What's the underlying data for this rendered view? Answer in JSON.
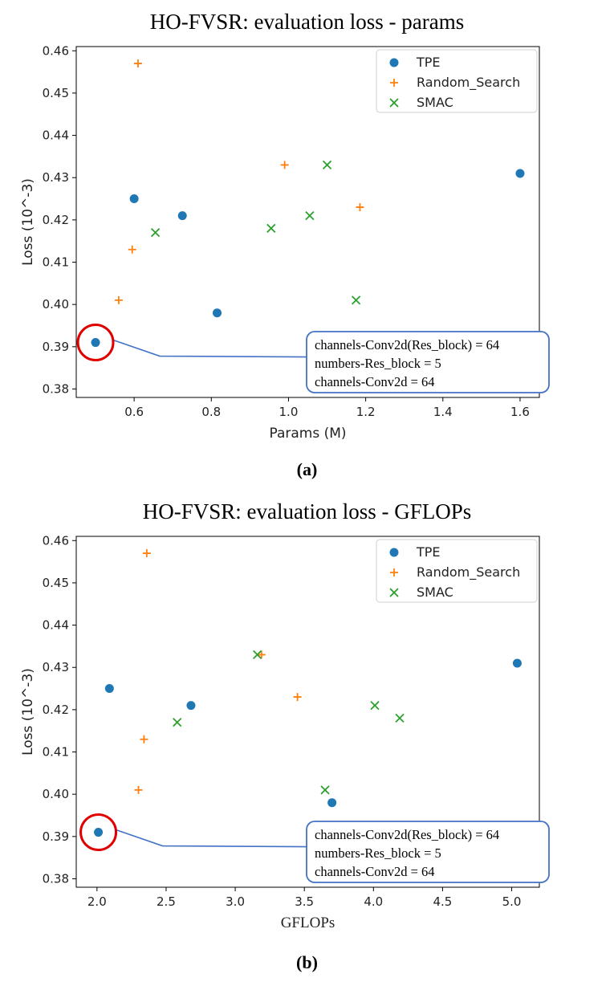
{
  "panels": [
    {
      "title": "HO-FVSR: evaluation loss - params",
      "tag": "(a)",
      "chart_data": {
        "type": "scatter",
        "title": "HO-FVSR: evaluation loss - params",
        "xlabel": "Params (M)",
        "ylabel": "Loss (10^-3)",
        "xlim": [
          0.45,
          1.65
        ],
        "ylim": [
          0.378,
          0.461
        ],
        "xticks": [
          0.6,
          0.8,
          1.0,
          1.2,
          1.4,
          1.6
        ],
        "xtick_labels": [
          "0.6",
          "0.8",
          "1.0",
          "1.2",
          "1.4",
          "1.6"
        ],
        "yticks": [
          0.38,
          0.39,
          0.4,
          0.41,
          0.42,
          0.43,
          0.44,
          0.45,
          0.46
        ],
        "ytick_labels": [
          "0.38",
          "0.39",
          "0.40",
          "0.41",
          "0.42",
          "0.43",
          "0.44",
          "0.45",
          "0.46"
        ],
        "grid": false,
        "legend_position": "top-right",
        "series": [
          {
            "name": "TPE",
            "marker": "circle",
            "color": "#1f77b4",
            "x": [
              0.5,
              0.6,
              0.725,
              0.815,
              1.6
            ],
            "y": [
              0.391,
              0.425,
              0.421,
              0.398,
              0.431
            ]
          },
          {
            "name": "Random_Search",
            "marker": "plus",
            "color": "#ff7f0e",
            "x": [
              0.56,
              0.595,
              0.61,
              0.99,
              1.185
            ],
            "y": [
              0.401,
              0.413,
              0.457,
              0.433,
              0.423
            ]
          },
          {
            "name": "SMAC",
            "marker": "x",
            "color": "#2ca02c",
            "x": [
              0.655,
              0.955,
              1.055,
              1.1,
              1.175
            ],
            "y": [
              0.417,
              0.418,
              0.421,
              0.433,
              0.401
            ]
          }
        ],
        "annotation": {
          "lines": [
            "channels-Conv2d(Res_block) = 64",
            "numbers-Res_block = 5",
            "channels-Conv2d = 64"
          ],
          "target": {
            "x": 0.5,
            "y": 0.391
          },
          "circle_color": "#e00000",
          "box_color": "#4472c4"
        }
      }
    },
    {
      "title": "HO-FVSR: evaluation loss - GFLOPs",
      "tag": "(b)",
      "chart_data": {
        "type": "scatter",
        "title": "HO-FVSR: evaluation loss - GFLOPs",
        "xlabel": "GFLOPs",
        "ylabel": "Loss (10^-3)",
        "xlim": [
          1.85,
          5.2
        ],
        "ylim": [
          0.378,
          0.461
        ],
        "xticks": [
          2.0,
          2.5,
          3.0,
          3.5,
          4.0,
          4.5,
          5.0
        ],
        "xtick_labels": [
          "2.0",
          "2.5",
          "3.0",
          "3.5",
          "4.0",
          "4.5",
          "5.0"
        ],
        "yticks": [
          0.38,
          0.39,
          0.4,
          0.41,
          0.42,
          0.43,
          0.44,
          0.45,
          0.46
        ],
        "ytick_labels": [
          "0.38",
          "0.39",
          "0.40",
          "0.41",
          "0.42",
          "0.43",
          "0.44",
          "0.45",
          "0.46"
        ],
        "grid": false,
        "legend_position": "top-right",
        "series": [
          {
            "name": "TPE",
            "marker": "circle",
            "color": "#1f77b4",
            "x": [
              2.01,
              2.09,
              2.68,
              3.7,
              5.04
            ],
            "y": [
              0.391,
              0.425,
              0.421,
              0.398,
              0.431
            ]
          },
          {
            "name": "Random_Search",
            "marker": "plus",
            "color": "#ff7f0e",
            "x": [
              2.3,
              2.34,
              2.36,
              3.19,
              3.45
            ],
            "y": [
              0.401,
              0.413,
              0.457,
              0.433,
              0.423
            ]
          },
          {
            "name": "SMAC",
            "marker": "x",
            "color": "#2ca02c",
            "x": [
              2.58,
              3.16,
              3.65,
              4.01,
              4.19
            ],
            "y": [
              0.417,
              0.433,
              0.401,
              0.421,
              0.418
            ]
          }
        ],
        "annotation": {
          "lines": [
            "channels-Conv2d(Res_block) = 64",
            "numbers-Res_block = 5",
            "channels-Conv2d = 64"
          ],
          "target": {
            "x": 2.01,
            "y": 0.391
          },
          "circle_color": "#e00000",
          "box_color": "#4472c4"
        }
      }
    }
  ]
}
